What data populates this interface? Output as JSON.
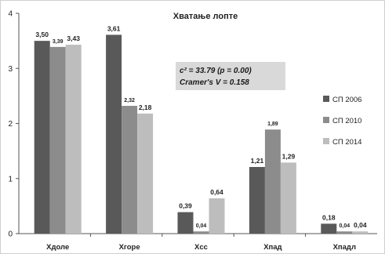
{
  "chart_data": {
    "type": "bar",
    "title": "Хватање лопте",
    "xlabel": "",
    "ylabel": "",
    "ylim": [
      0,
      4
    ],
    "yticks": [
      "0",
      "1",
      "2",
      "3",
      "4"
    ],
    "categories": [
      "Хдоле",
      "Хгоре",
      "Хсс",
      "Хпад",
      "Хпадл"
    ],
    "series": [
      {
        "name": "СП 2006",
        "color": "#595959",
        "values": [
          3.5,
          3.61,
          0.39,
          1.21,
          0.18
        ],
        "labels": [
          "3,50",
          "3,61",
          "0,39",
          "1,21",
          "0,18"
        ]
      },
      {
        "name": "СП 2010",
        "color": "#8c8c8c",
        "values": [
          3.39,
          2.32,
          0.04,
          1.89,
          0.04
        ],
        "labels": [
          "3,39",
          "2,32",
          "0,04",
          "1,89",
          "0,04"
        ]
      },
      {
        "name": "СП 2014",
        "color": "#bdbdbd",
        "values": [
          3.43,
          2.18,
          0.64,
          1.29,
          0.04
        ],
        "labels": [
          "3,43",
          "2,18",
          "0,64",
          "1,29",
          "0,04"
        ]
      }
    ],
    "annotation": {
      "line1": "c² = 33.79 (p = 0.00)",
      "line2": "Cramer's V = 0.158",
      "background": "#d9d9d9"
    },
    "legend_position": "right",
    "grid": false
  }
}
